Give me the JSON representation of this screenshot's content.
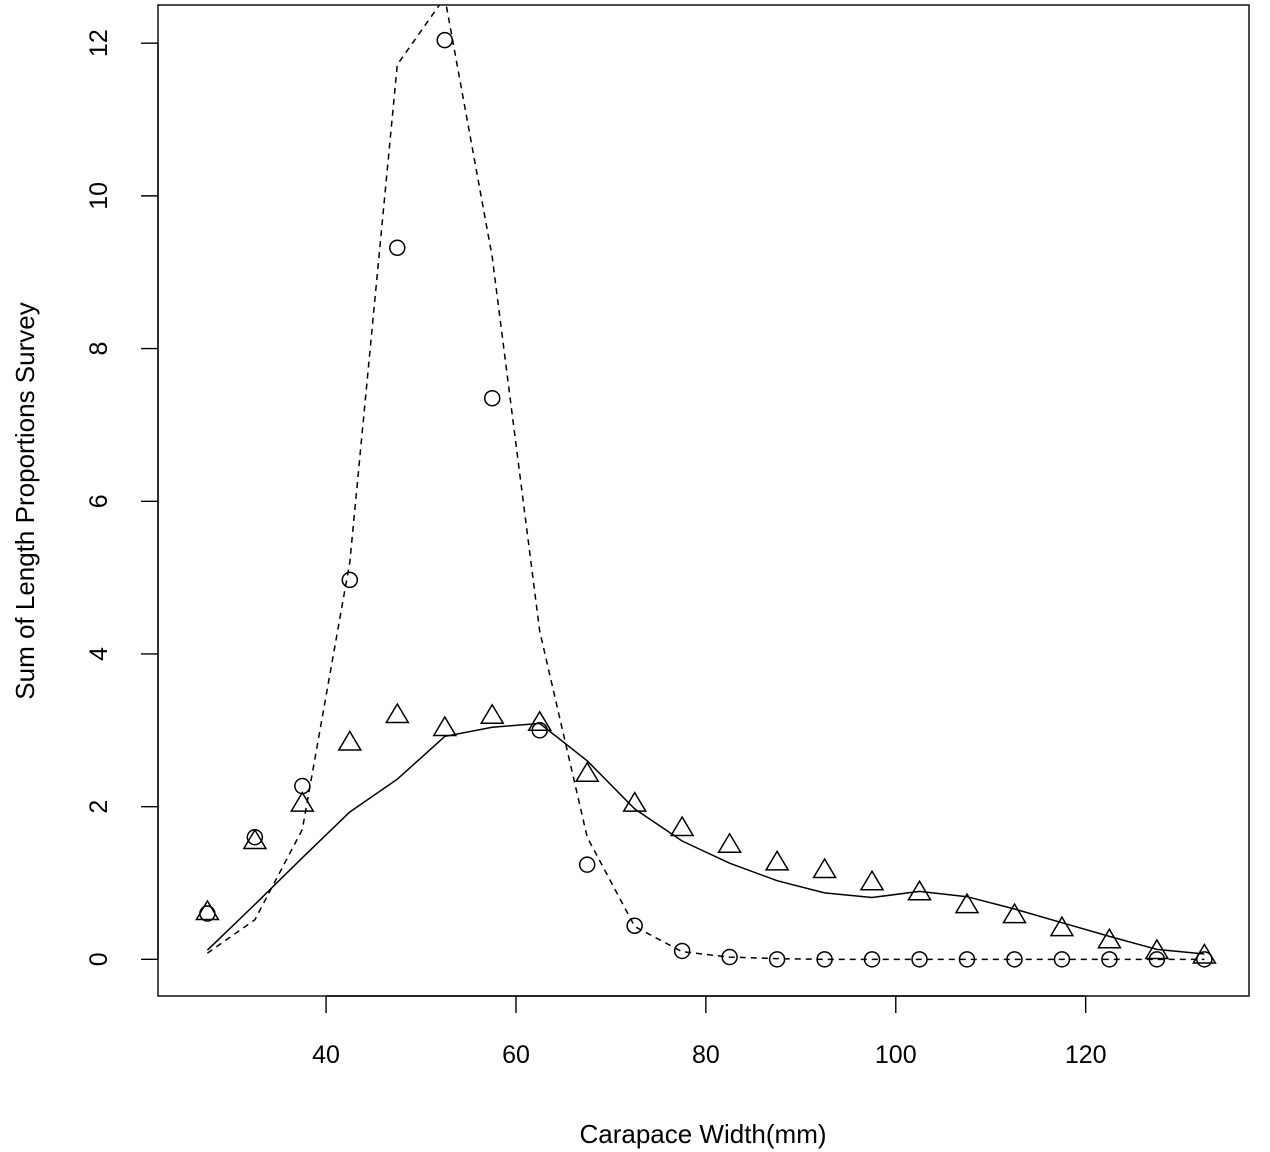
{
  "chart_data": {
    "type": "scatter",
    "title": "",
    "xlabel": "Carapace Width(mm)",
    "ylabel": "Sum of Length Proportions Survey",
    "xlim": [
      22.3,
      137.2
    ],
    "ylim": [
      -0.48,
      12.5
    ],
    "xticks": [
      40,
      60,
      80,
      100,
      120
    ],
    "yticks": [
      0,
      2,
      4,
      6,
      8,
      10,
      12
    ],
    "grid": false,
    "legend": "none",
    "series": [
      {
        "marker": "circle",
        "x": [
          27.5,
          32.5,
          37.5,
          42.5,
          47.5,
          52.5,
          57.5,
          62.5,
          67.5,
          72.5,
          77.5,
          82.5,
          87.5,
          92.5,
          97.5,
          102.5,
          107.5,
          112.5,
          117.5,
          122.5,
          127.5,
          132.5
        ],
        "y": [
          0.6,
          1.6,
          2.27,
          4.97,
          9.32,
          12.04,
          7.35,
          3.0,
          1.24,
          0.44,
          0.11,
          0.03,
          0.0,
          0.0,
          0.0,
          0.0,
          0.0,
          0.0,
          0.0,
          0.0,
          0.0,
          0.0
        ]
      },
      {
        "marker": "triangle",
        "x": [
          27.5,
          32.5,
          37.5,
          42.5,
          47.5,
          52.5,
          57.5,
          62.5,
          67.5,
          72.5,
          77.5,
          82.5,
          87.5,
          92.5,
          97.5,
          102.5,
          107.5,
          112.5,
          117.5,
          122.5,
          127.5,
          132.5
        ],
        "y": [
          0.62,
          1.55,
          2.04,
          2.84,
          3.2,
          3.03,
          3.19,
          3.1,
          2.43,
          2.04,
          1.72,
          1.5,
          1.27,
          1.17,
          1.01,
          0.88,
          0.71,
          0.58,
          0.41,
          0.25,
          0.11,
          0.05
        ]
      },
      {
        "line": "dashed",
        "x": [
          27.5,
          32.5,
          37.5,
          42.5,
          47.5,
          52.5,
          57.5,
          62.5,
          67.5,
          72.5,
          77.5,
          82.5,
          87.5,
          92.5,
          97.5,
          102.5,
          107.5,
          112.5,
          117.5,
          122.5,
          127.5,
          132.5
        ],
        "y": [
          0.08,
          0.52,
          1.7,
          5.2,
          11.72,
          12.6,
          9.2,
          4.3,
          1.6,
          0.43,
          0.1,
          0.03,
          0.01,
          0.0,
          0.0,
          0.0,
          0.0,
          0.0,
          0.0,
          0.0,
          0.0,
          0.0
        ]
      },
      {
        "line": "solid",
        "x": [
          27.5,
          32.5,
          37.5,
          42.5,
          47.5,
          52.5,
          57.5,
          62.5,
          67.5,
          72.5,
          77.5,
          82.5,
          87.5,
          92.5,
          97.5,
          102.5,
          107.5,
          112.5,
          117.5,
          122.5,
          127.5,
          132.5
        ],
        "y": [
          0.12,
          0.72,
          1.33,
          1.93,
          2.36,
          2.92,
          3.04,
          3.09,
          2.6,
          1.97,
          1.55,
          1.26,
          1.03,
          0.87,
          0.81,
          0.89,
          0.82,
          0.66,
          0.48,
          0.3,
          0.13,
          0.07
        ]
      }
    ]
  }
}
